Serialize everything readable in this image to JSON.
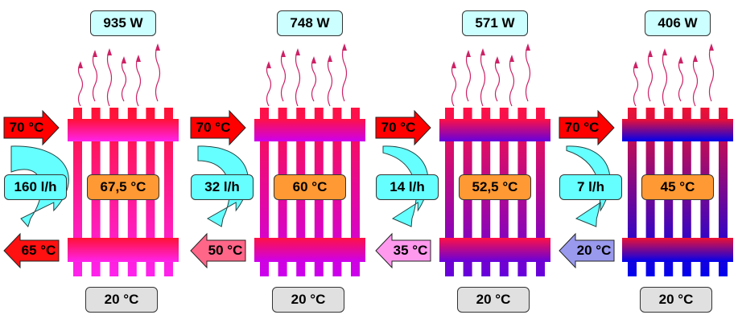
{
  "colors": {
    "inlet_arrow": "#ff0000",
    "flow_box": "#66ffff",
    "mean_box": "#ff9933",
    "power_box": "#ccffff",
    "room_box": "#e0e0e0",
    "heat_wave": "#cc2266"
  },
  "radiators": [
    {
      "power": "935 W",
      "inlet": "70 °C",
      "flow": "160 l/h",
      "mean_temp": "67,5 °C",
      "outlet": "65 °C",
      "room_temp": "20 °C",
      "top_color": "#ff1133",
      "bottom_color": "#ff22ee",
      "outlet_color": "#ff1111",
      "flow_arrow_thickness": 1.0
    },
    {
      "power": "748 W",
      "inlet": "70 °C",
      "flow": "32 l/h",
      "mean_temp": "60 °C",
      "outlet": "50 °C",
      "room_temp": "20 °C",
      "top_color": "#ff1144",
      "bottom_color": "#cc00ee",
      "outlet_color": "#ff6688",
      "flow_arrow_thickness": 0.5
    },
    {
      "power": "571 W",
      "inlet": "70 °C",
      "flow": "14 l/h",
      "mean_temp": "52,5 °C",
      "outlet": "35 °C",
      "room_temp": "20 °C",
      "top_color": "#ff1144",
      "bottom_color": "#6600dd",
      "outlet_color": "#ff99ee",
      "flow_arrow_thickness": 0.15
    },
    {
      "power": "406 W",
      "inlet": "70 °C",
      "flow": "7 l/h",
      "mean_temp": "45 °C",
      "outlet": "20 °C",
      "room_temp": "20 °C",
      "top_color": "#ee1133",
      "bottom_color": "#0000ee",
      "outlet_color": "#9999ee",
      "flow_arrow_thickness": 0.05
    }
  ]
}
